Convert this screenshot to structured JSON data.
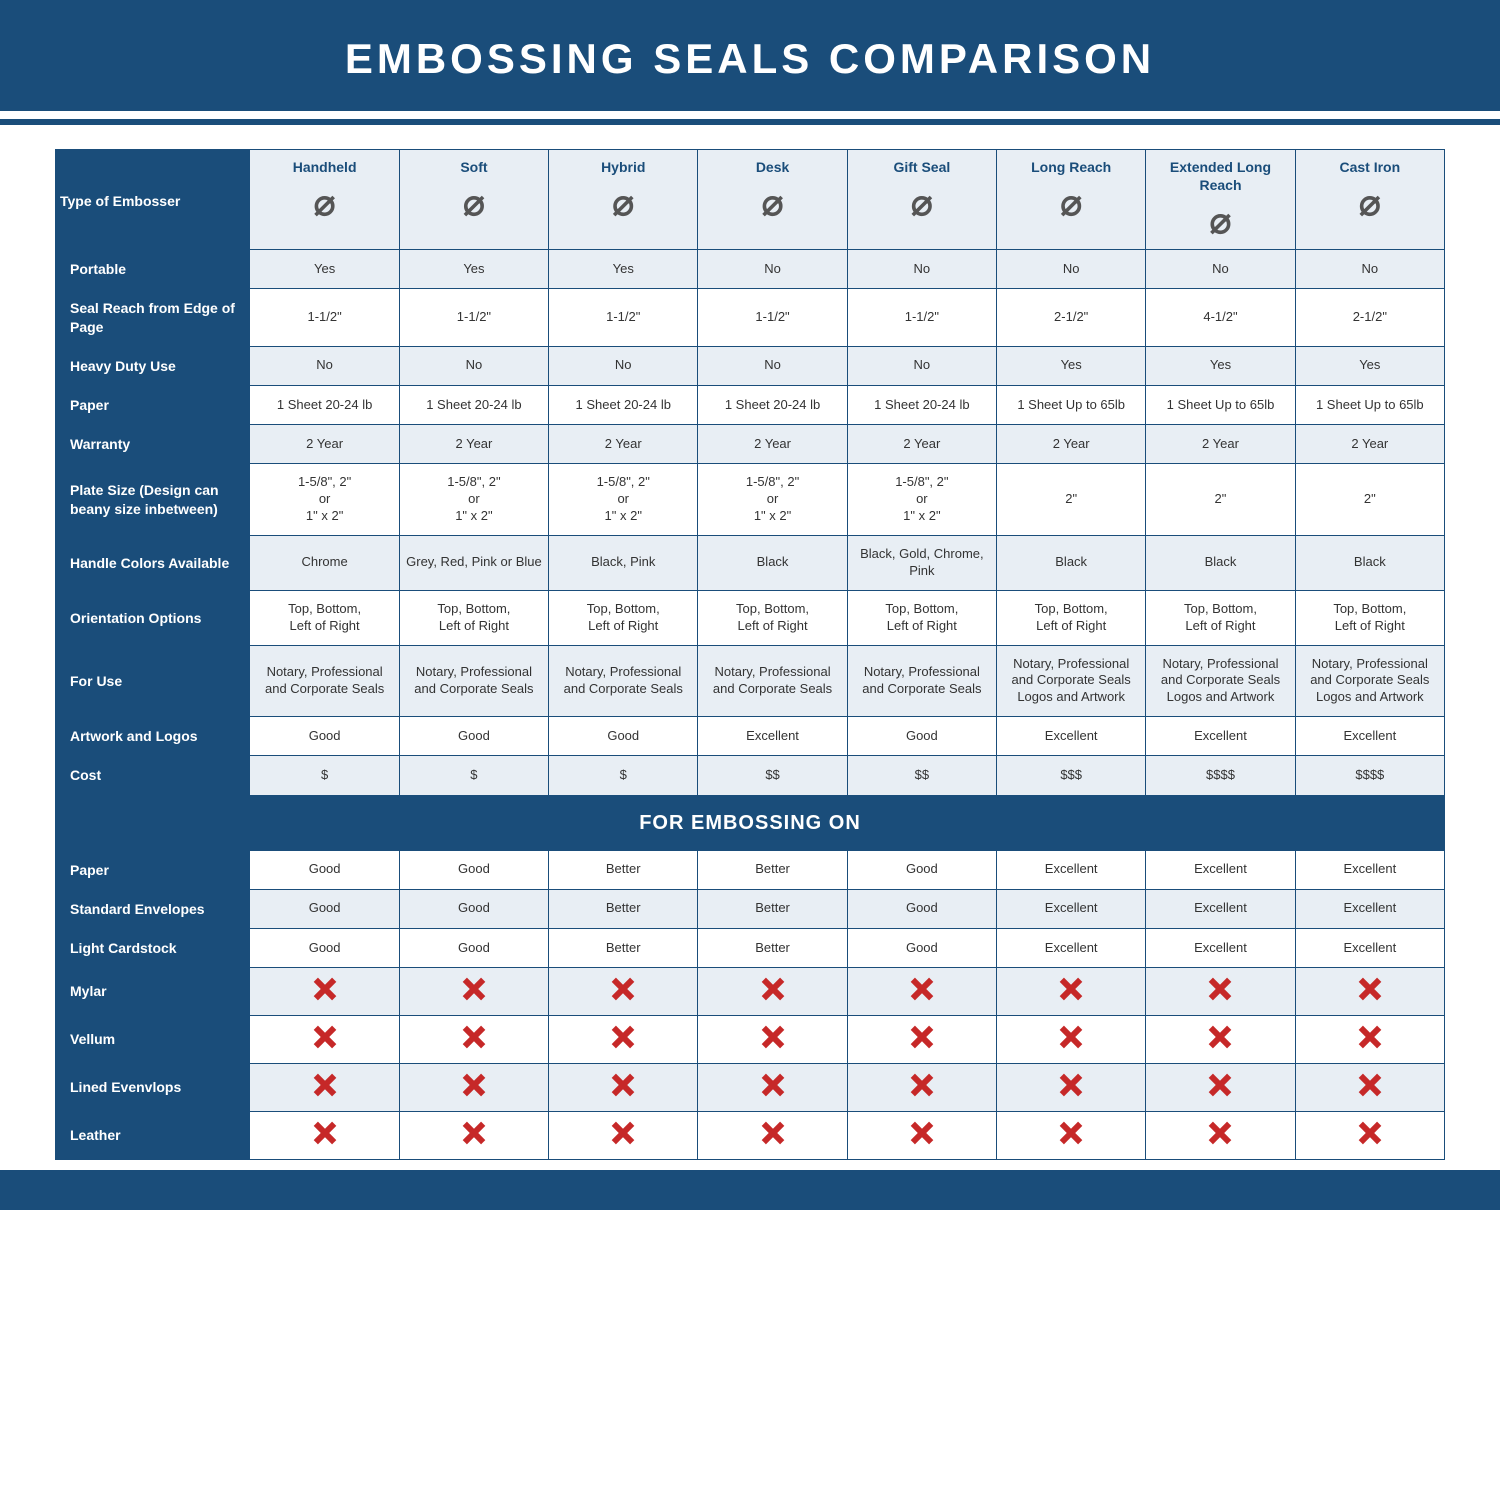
{
  "title": "EMBOSSING SEALS COMPARISON",
  "colors": {
    "primary": "#1a4d7a",
    "header_cell_bg": "#e8eef4",
    "row_alt_bg": "#e8eef4",
    "row_bg": "#ffffff",
    "x_color": "#c62828",
    "text": "#333333"
  },
  "columns": [
    {
      "key": "handheld",
      "label": "Handheld"
    },
    {
      "key": "soft",
      "label": "Soft"
    },
    {
      "key": "hybrid",
      "label": "Hybrid"
    },
    {
      "key": "desk",
      "label": "Desk"
    },
    {
      "key": "gift",
      "label": "Gift Seal"
    },
    {
      "key": "longreach",
      "label": "Long Reach"
    },
    {
      "key": "extlong",
      "label": "Extended Long Reach"
    },
    {
      "key": "castiron",
      "label": "Cast Iron"
    }
  ],
  "row_header_label": "Type of Embosser",
  "section_label": "FOR EMBOSSING ON",
  "spec_rows": [
    {
      "label": "Portable",
      "cells": [
        "Yes",
        "Yes",
        "Yes",
        "No",
        "No",
        "No",
        "No",
        "No"
      ]
    },
    {
      "label": "Seal Reach from Edge of Page",
      "cells": [
        "1-1/2\"",
        "1-1/2\"",
        "1-1/2\"",
        "1-1/2\"",
        "1-1/2\"",
        "2-1/2\"",
        "4-1/2\"",
        "2-1/2\""
      ]
    },
    {
      "label": "Heavy Duty Use",
      "cells": [
        "No",
        "No",
        "No",
        "No",
        "No",
        "Yes",
        "Yes",
        "Yes"
      ]
    },
    {
      "label": "Paper",
      "cells": [
        "1 Sheet 20-24 lb",
        "1 Sheet 20-24 lb",
        "1 Sheet 20-24 lb",
        "1 Sheet 20-24 lb",
        "1 Sheet 20-24 lb",
        "1 Sheet Up to 65lb",
        "1 Sheet Up to 65lb",
        "1 Sheet Up to 65lb"
      ]
    },
    {
      "label": "Warranty",
      "cells": [
        "2 Year",
        "2 Year",
        "2 Year",
        "2 Year",
        "2 Year",
        "2 Year",
        "2 Year",
        "2 Year"
      ]
    },
    {
      "label": "Plate Size (Design can beany size inbetween)",
      "cells": [
        "1-5/8\", 2\"\nor\n1\" x 2\"",
        "1-5/8\", 2\"\nor\n1\" x 2\"",
        "1-5/8\", 2\"\nor\n1\" x 2\"",
        "1-5/8\", 2\"\nor\n1\" x 2\"",
        "1-5/8\", 2\"\nor\n1\" x 2\"",
        "2\"",
        "2\"",
        "2\""
      ]
    },
    {
      "label": "Handle Colors Available",
      "cells": [
        "Chrome",
        "Grey, Red, Pink or Blue",
        "Black, Pink",
        "Black",
        "Black, Gold, Chrome, Pink",
        "Black",
        "Black",
        "Black"
      ]
    },
    {
      "label": "Orientation Options",
      "cells": [
        "Top, Bottom,\nLeft of Right",
        "Top, Bottom,\nLeft of Right",
        "Top, Bottom,\nLeft of Right",
        "Top, Bottom,\nLeft of Right",
        "Top, Bottom,\nLeft of Right",
        "Top, Bottom,\nLeft of Right",
        "Top, Bottom,\nLeft of Right",
        "Top, Bottom,\nLeft of Right"
      ]
    },
    {
      "label": "For Use",
      "cells": [
        "Notary, Professional and Corporate Seals",
        "Notary, Professional and Corporate Seals",
        "Notary, Professional and Corporate Seals",
        "Notary, Professional and Corporate Seals",
        "Notary, Professional and Corporate Seals",
        "Notary, Professional and Corporate Seals Logos and Artwork",
        "Notary, Professional and Corporate Seals Logos and Artwork",
        "Notary, Professional and Corporate Seals Logos and Artwork"
      ]
    },
    {
      "label": "Artwork and Logos",
      "cells": [
        "Good",
        "Good",
        "Good",
        "Excellent",
        "Good",
        "Excellent",
        "Excellent",
        "Excellent"
      ]
    },
    {
      "label": "Cost",
      "cells": [
        "$",
        "$",
        "$",
        "$$",
        "$$",
        "$$$",
        "$$$$",
        "$$$$"
      ]
    }
  ],
  "material_rows": [
    {
      "label": "Paper",
      "cells": [
        "Good",
        "Good",
        "Better",
        "Better",
        "Good",
        "Excellent",
        "Excellent",
        "Excellent"
      ]
    },
    {
      "label": "Standard Envelopes",
      "cells": [
        "Good",
        "Good",
        "Better",
        "Better",
        "Good",
        "Excellent",
        "Excellent",
        "Excellent"
      ]
    },
    {
      "label": "Light Cardstock",
      "cells": [
        "Good",
        "Good",
        "Better",
        "Better",
        "Good",
        "Excellent",
        "Excellent",
        "Excellent"
      ]
    },
    {
      "label": "Mylar",
      "cells": [
        "X",
        "X",
        "X",
        "X",
        "X",
        "X",
        "X",
        "X"
      ]
    },
    {
      "label": "Vellum",
      "cells": [
        "X",
        "X",
        "X",
        "X",
        "X",
        "X",
        "X",
        "X"
      ]
    },
    {
      "label": "Lined Evenvlops",
      "cells": [
        "X",
        "X",
        "X",
        "X",
        "X",
        "X",
        "X",
        "X"
      ]
    },
    {
      "label": "Leather",
      "cells": [
        "X",
        "X",
        "X",
        "X",
        "X",
        "X",
        "X",
        "X"
      ]
    }
  ]
}
